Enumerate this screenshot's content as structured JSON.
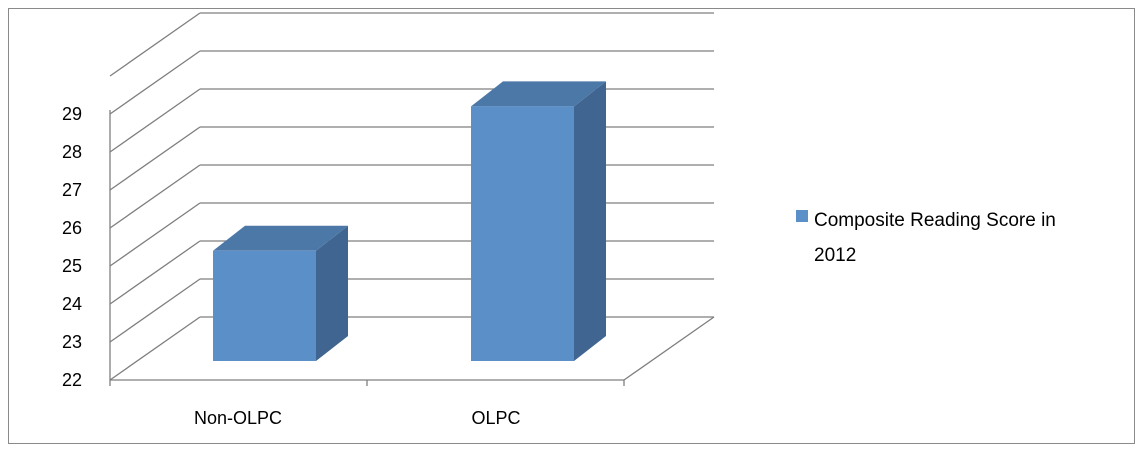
{
  "chart_data": {
    "type": "bar",
    "style": "3d-column",
    "categories": [
      "Non-OLPC",
      "OLPC"
    ],
    "series": [
      {
        "name": "Composite Reading Score in 2012",
        "values": [
          24.9,
          28.7
        ],
        "color": "#5b8fc7"
      }
    ],
    "ylim": [
      22,
      29
    ],
    "yticks": [
      "22",
      "23",
      "24",
      "25",
      "26",
      "27",
      "28",
      "29"
    ],
    "grid": true,
    "legend_position": "right"
  },
  "legend": {
    "line1": "Composite Reading Score in",
    "line2": "2012"
  },
  "colors": {
    "bar_front": "#5b8fc7",
    "bar_side": "#3f6590",
    "bar_top": "#4c78a8",
    "grid": "#7f7f7f"
  }
}
